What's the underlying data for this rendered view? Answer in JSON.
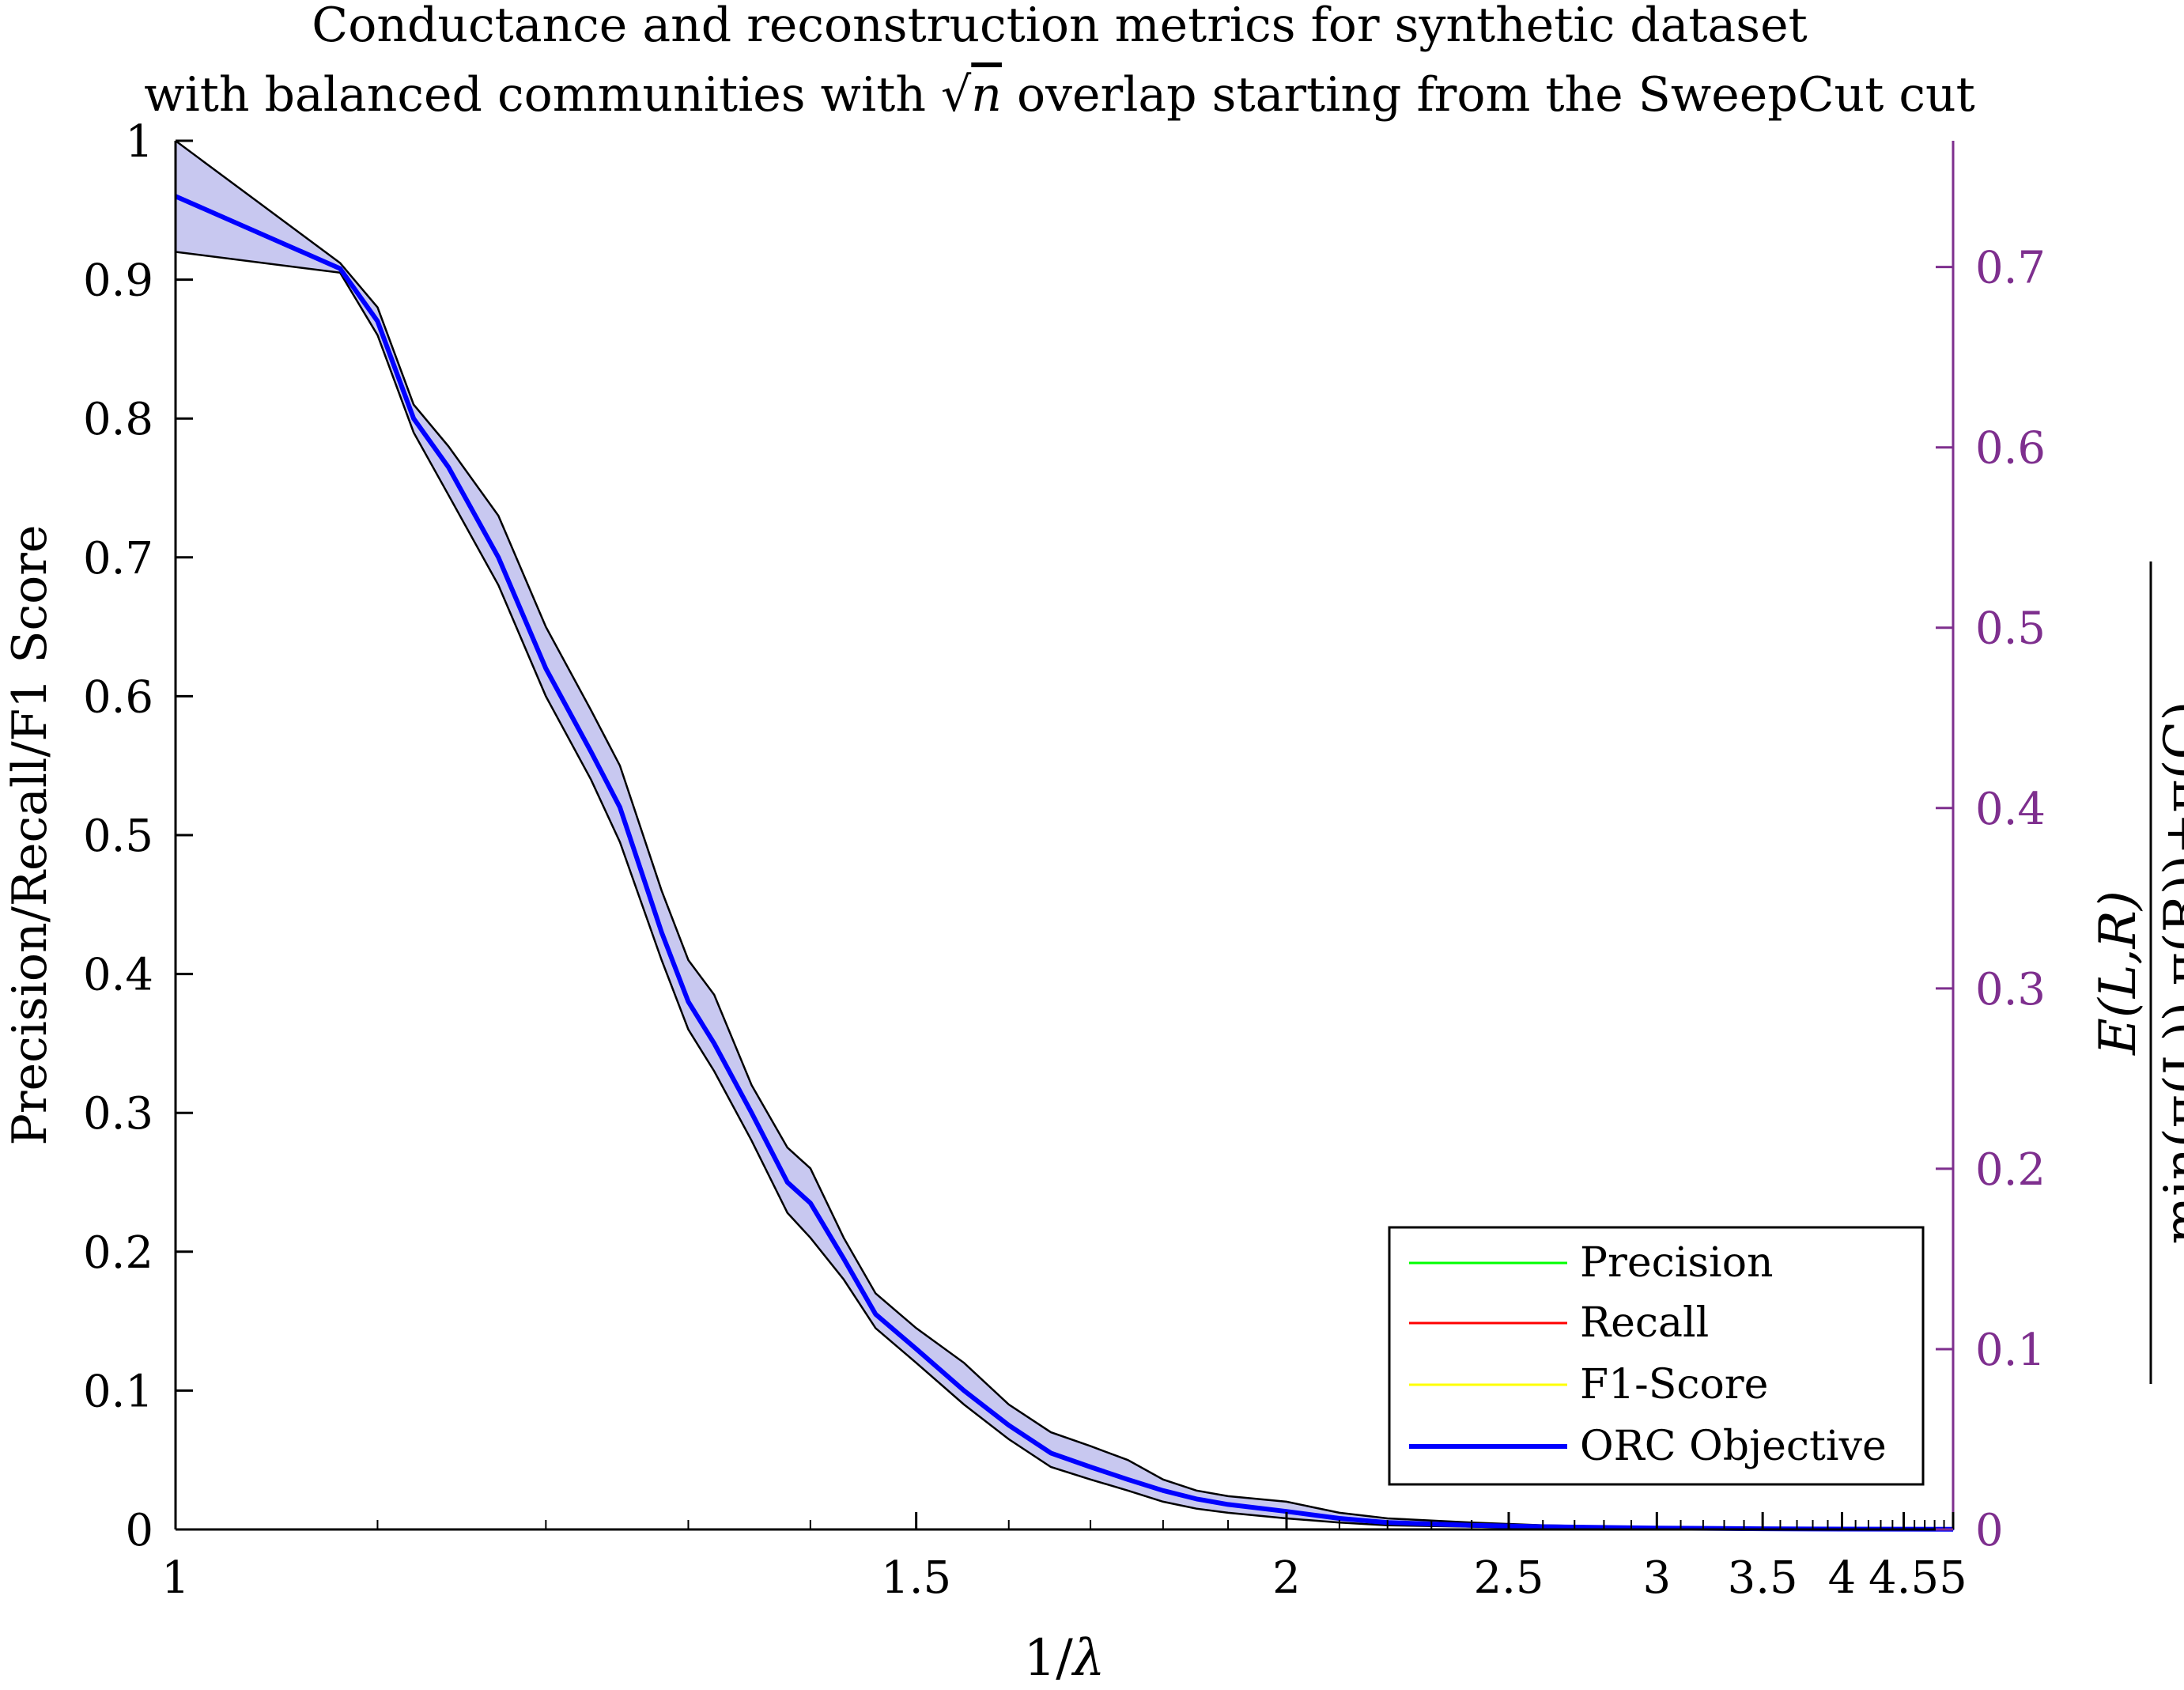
{
  "chart_data": {
    "type": "line",
    "title_line1": "Conductance and reconstruction metrics for synthetic dataset",
    "title_line2_pre": "with balanced communities with ",
    "title_line2_sqrt": "√",
    "title_line2_n": "n",
    "title_line2_post": " overlap starting from the SweepCut cut",
    "xlabel_num": "1/",
    "xlabel_lambda": "λ",
    "ylabel": "Precision/Recall/F1 Score",
    "ylabel_right_numerator": "E(L,R)",
    "ylabel_right_denominator": "min(π(L)),π(R))+π(C)",
    "x_scale": "reciprocal",
    "xlim": [
      1,
      5
    ],
    "ylim_left": [
      0,
      1
    ],
    "ylim_right": [
      0,
      0.77
    ],
    "x_ticks": [
      "1",
      "1.5",
      "2",
      "2.5",
      "3",
      "3.5",
      "4",
      "4.5",
      "5"
    ],
    "y_ticks_left": [
      "0",
      "0.1",
      "0.2",
      "0.3",
      "0.4",
      "0.5",
      "0.6",
      "0.7",
      "0.8",
      "0.9",
      "1"
    ],
    "y_ticks_right": [
      "0",
      "0.1",
      "0.2",
      "0.3",
      "0.4",
      "0.5",
      "0.6",
      "0.7"
    ],
    "legend_position": "bottom-right",
    "colors": {
      "precision": "#00ff00",
      "recall": "#ff0000",
      "f1": "#ffff00",
      "orc": "#0000ff",
      "band_fill": "#c8c8f0",
      "right_axis": "#7e2f8e"
    },
    "series": [
      {
        "name": "Precision",
        "values": []
      },
      {
        "name": "Recall",
        "values": []
      },
      {
        "name": "F1-Score",
        "values": []
      },
      {
        "name": "ORC Objective",
        "x": [
          1.0,
          1.08,
          1.1,
          1.12,
          1.14,
          1.17,
          1.2,
          1.23,
          1.25,
          1.28,
          1.3,
          1.32,
          1.35,
          1.38,
          1.4,
          1.43,
          1.46,
          1.5,
          1.55,
          1.6,
          1.65,
          1.7,
          1.75,
          1.8,
          1.85,
          1.9,
          2.0,
          2.1,
          2.2,
          2.4,
          2.6,
          3.0,
          3.5,
          4.0,
          4.5,
          5.0
        ],
        "values": [
          0.96,
          0.908,
          0.87,
          0.8,
          0.765,
          0.7,
          0.62,
          0.56,
          0.52,
          0.43,
          0.38,
          0.35,
          0.3,
          0.25,
          0.235,
          0.195,
          0.155,
          0.13,
          0.1,
          0.075,
          0.055,
          0.045,
          0.036,
          0.028,
          0.022,
          0.018,
          0.013,
          0.008,
          0.005,
          0.003,
          0.002,
          0.001,
          0.0005,
          0.0003,
          0.0002,
          0.0001
        ],
        "lower": [
          0.92,
          0.905,
          0.86,
          0.79,
          0.745,
          0.68,
          0.6,
          0.54,
          0.495,
          0.41,
          0.36,
          0.33,
          0.28,
          0.228,
          0.21,
          0.18,
          0.145,
          0.12,
          0.09,
          0.065,
          0.045,
          0.036,
          0.028,
          0.02,
          0.015,
          0.012,
          0.008,
          0.005,
          0.003,
          0.002,
          0.001,
          0.0005,
          0.0003,
          0.0002,
          0.0001,
          0.0001
        ],
        "upper": [
          1.0,
          0.912,
          0.88,
          0.81,
          0.78,
          0.73,
          0.65,
          0.59,
          0.55,
          0.46,
          0.41,
          0.385,
          0.32,
          0.275,
          0.26,
          0.21,
          0.17,
          0.145,
          0.12,
          0.09,
          0.07,
          0.06,
          0.05,
          0.036,
          0.028,
          0.024,
          0.02,
          0.012,
          0.008,
          0.005,
          0.003,
          0.0015,
          0.0008,
          0.0005,
          0.0003,
          0.0002
        ]
      }
    ]
  }
}
